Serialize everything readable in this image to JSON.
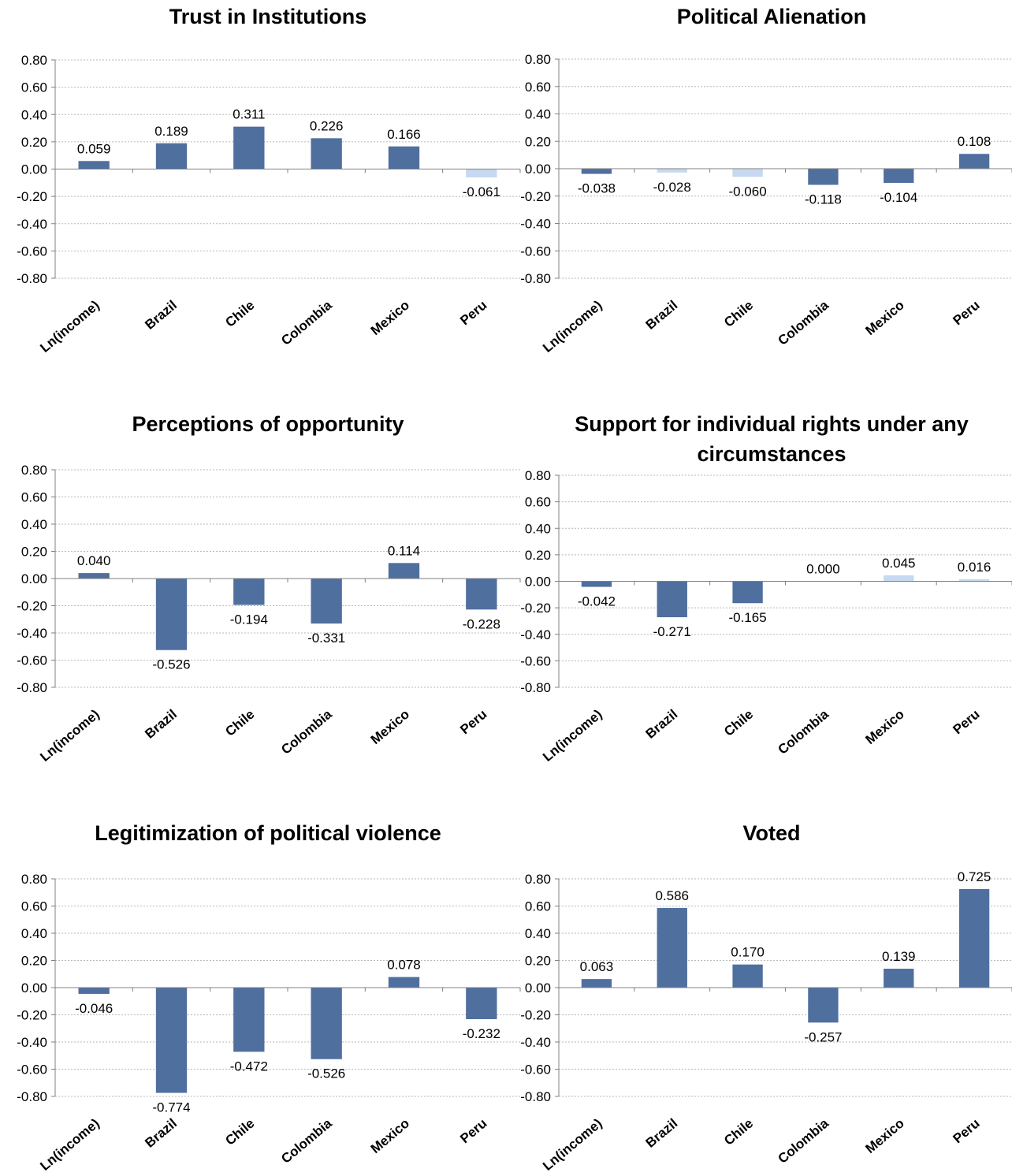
{
  "chart_data": [
    {
      "type": "bar",
      "title": "Trust in Institutions",
      "categories": [
        "Ln(income)",
        "Brazil",
        "Chile",
        "Colombia",
        "Mexico",
        "Peru"
      ],
      "values": [
        0.059,
        0.189,
        0.311,
        0.226,
        0.166,
        -0.061
      ],
      "value_labels": [
        "0.059",
        "0.189",
        "0.311",
        "0.226",
        "0.166",
        "-0.061"
      ],
      "highlighted": [
        true,
        true,
        true,
        true,
        true,
        false
      ],
      "ylim": [
        -0.8,
        0.8
      ],
      "yticks": [
        "0.80",
        "0.60",
        "0.40",
        "0.20",
        "0.00",
        "-0.20",
        "-0.40",
        "-0.60",
        "-0.80"
      ],
      "grid": true,
      "legend": "none"
    },
    {
      "type": "bar",
      "title": "Political Alienation",
      "categories": [
        "Ln(income)",
        "Brazil",
        "Chile",
        "Colombia",
        "Mexico",
        "Peru"
      ],
      "values": [
        -0.038,
        -0.028,
        -0.06,
        -0.118,
        -0.104,
        0.108
      ],
      "value_labels": [
        "-0.038",
        "-0.028",
        "-0.060",
        "-0.118",
        "-0.104",
        "0.108"
      ],
      "highlighted": [
        true,
        false,
        false,
        true,
        true,
        true
      ],
      "ylim": [
        -0.8,
        0.8
      ],
      "yticks": [
        "0.80",
        "0.60",
        "0.40",
        "0.20",
        "0.00",
        "-0.20",
        "-0.40",
        "-0.60",
        "-0.80"
      ],
      "grid": true,
      "legend": "none"
    },
    {
      "type": "bar",
      "title": "Perceptions of opportunity",
      "categories": [
        "Ln(income)",
        "Brazil",
        "Chile",
        "Colombia",
        "Mexico",
        "Peru"
      ],
      "values": [
        0.04,
        -0.526,
        -0.194,
        -0.331,
        0.114,
        -0.228
      ],
      "value_labels": [
        "0.040",
        "-0.526",
        "-0.194",
        "-0.331",
        "0.114",
        "-0.228"
      ],
      "highlighted": [
        true,
        true,
        true,
        true,
        true,
        true
      ],
      "ylim": [
        -0.8,
        0.8
      ],
      "yticks": [
        "0.80",
        "0.60",
        "0.40",
        "0.20",
        "0.00",
        "-0.20",
        "-0.40",
        "-0.60",
        "-0.80"
      ],
      "grid": true,
      "legend": "none"
    },
    {
      "type": "bar",
      "title": "Support for individual rights under any circumstances",
      "categories": [
        "Ln(income)",
        "Brazil",
        "Chile",
        "Colombia",
        "Mexico",
        "Peru"
      ],
      "values": [
        -0.042,
        -0.271,
        -0.165,
        0.0,
        0.045,
        0.016
      ],
      "value_labels": [
        "-0.042",
        "-0.271",
        "-0.165",
        "0.000",
        "0.045",
        "0.016"
      ],
      "highlighted": [
        true,
        true,
        true,
        true,
        false,
        false
      ],
      "ylim": [
        -0.8,
        0.8
      ],
      "yticks": [
        "0.80",
        "0.60",
        "0.40",
        "0.20",
        "0.00",
        "-0.20",
        "-0.40",
        "-0.60",
        "-0.80"
      ],
      "grid": true,
      "legend": "none"
    },
    {
      "type": "bar",
      "title": "Legitimization of political violence",
      "categories": [
        "Ln(income)",
        "Brazil",
        "Chile",
        "Colombia",
        "Mexico",
        "Peru"
      ],
      "values": [
        -0.046,
        -0.774,
        -0.472,
        -0.526,
        0.078,
        -0.232
      ],
      "value_labels": [
        "-0.046",
        "-0.774",
        "-0.472",
        "-0.526",
        "0.078",
        "-0.232"
      ],
      "highlighted": [
        true,
        true,
        true,
        true,
        true,
        true
      ],
      "ylim": [
        -0.8,
        0.8
      ],
      "yticks": [
        "0.80",
        "0.60",
        "0.40",
        "0.20",
        "0.00",
        "-0.20",
        "-0.40",
        "-0.60",
        "-0.80"
      ],
      "grid": true,
      "legend": "none"
    },
    {
      "type": "bar",
      "title": "Voted",
      "categories": [
        "Ln(income)",
        "Brazil",
        "Chile",
        "Colombia",
        "Mexico",
        "Peru"
      ],
      "values": [
        0.063,
        0.586,
        0.17,
        -0.257,
        0.139,
        0.725
      ],
      "value_labels": [
        "0.063",
        "0.586",
        "0.170",
        "-0.257",
        "0.139",
        "0.725"
      ],
      "highlighted": [
        true,
        true,
        true,
        true,
        true,
        true
      ],
      "ylim": [
        -0.8,
        0.8
      ],
      "yticks": [
        "0.80",
        "0.60",
        "0.40",
        "0.20",
        "0.00",
        "-0.20",
        "-0.40",
        "-0.60",
        "-0.80"
      ],
      "grid": true,
      "legend": "none"
    }
  ],
  "colors": {
    "bar_dark": "#4f6f9f",
    "bar_light": "#c6d9f1",
    "grid": "#b9b9b9",
    "axis": "#808080"
  }
}
